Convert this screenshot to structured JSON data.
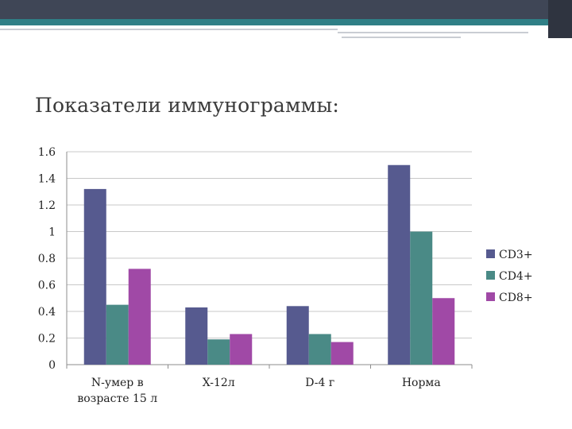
{
  "slide": {
    "title": "Показатели иммунограммы:"
  },
  "colors": {
    "topbar": "#3f4656",
    "accent": "#2f7f86"
  },
  "chart_data": {
    "type": "bar",
    "categories": [
      [
        "N-умер в",
        "возрасте 15 л"
      ],
      [
        "X-12л"
      ],
      [
        "D-4 г"
      ],
      [
        "Норма"
      ]
    ],
    "series": [
      {
        "name": "CD3+",
        "color": "#565a8f",
        "values": [
          1.32,
          0.43,
          0.44,
          1.5
        ]
      },
      {
        "name": "CD4+",
        "color": "#4a8a86",
        "values": [
          0.45,
          0.19,
          0.23,
          1.0
        ]
      },
      {
        "name": "CD8+",
        "color": "#a049a6",
        "values": [
          0.72,
          0.23,
          0.17,
          0.5
        ]
      }
    ],
    "ylim": [
      0,
      1.6
    ],
    "yticks": [
      "0",
      "0.2",
      "0.4",
      "0.6",
      "0.8",
      "1",
      "1.2",
      "1.4",
      "1.6"
    ],
    "grid": true,
    "legend": "right"
  }
}
